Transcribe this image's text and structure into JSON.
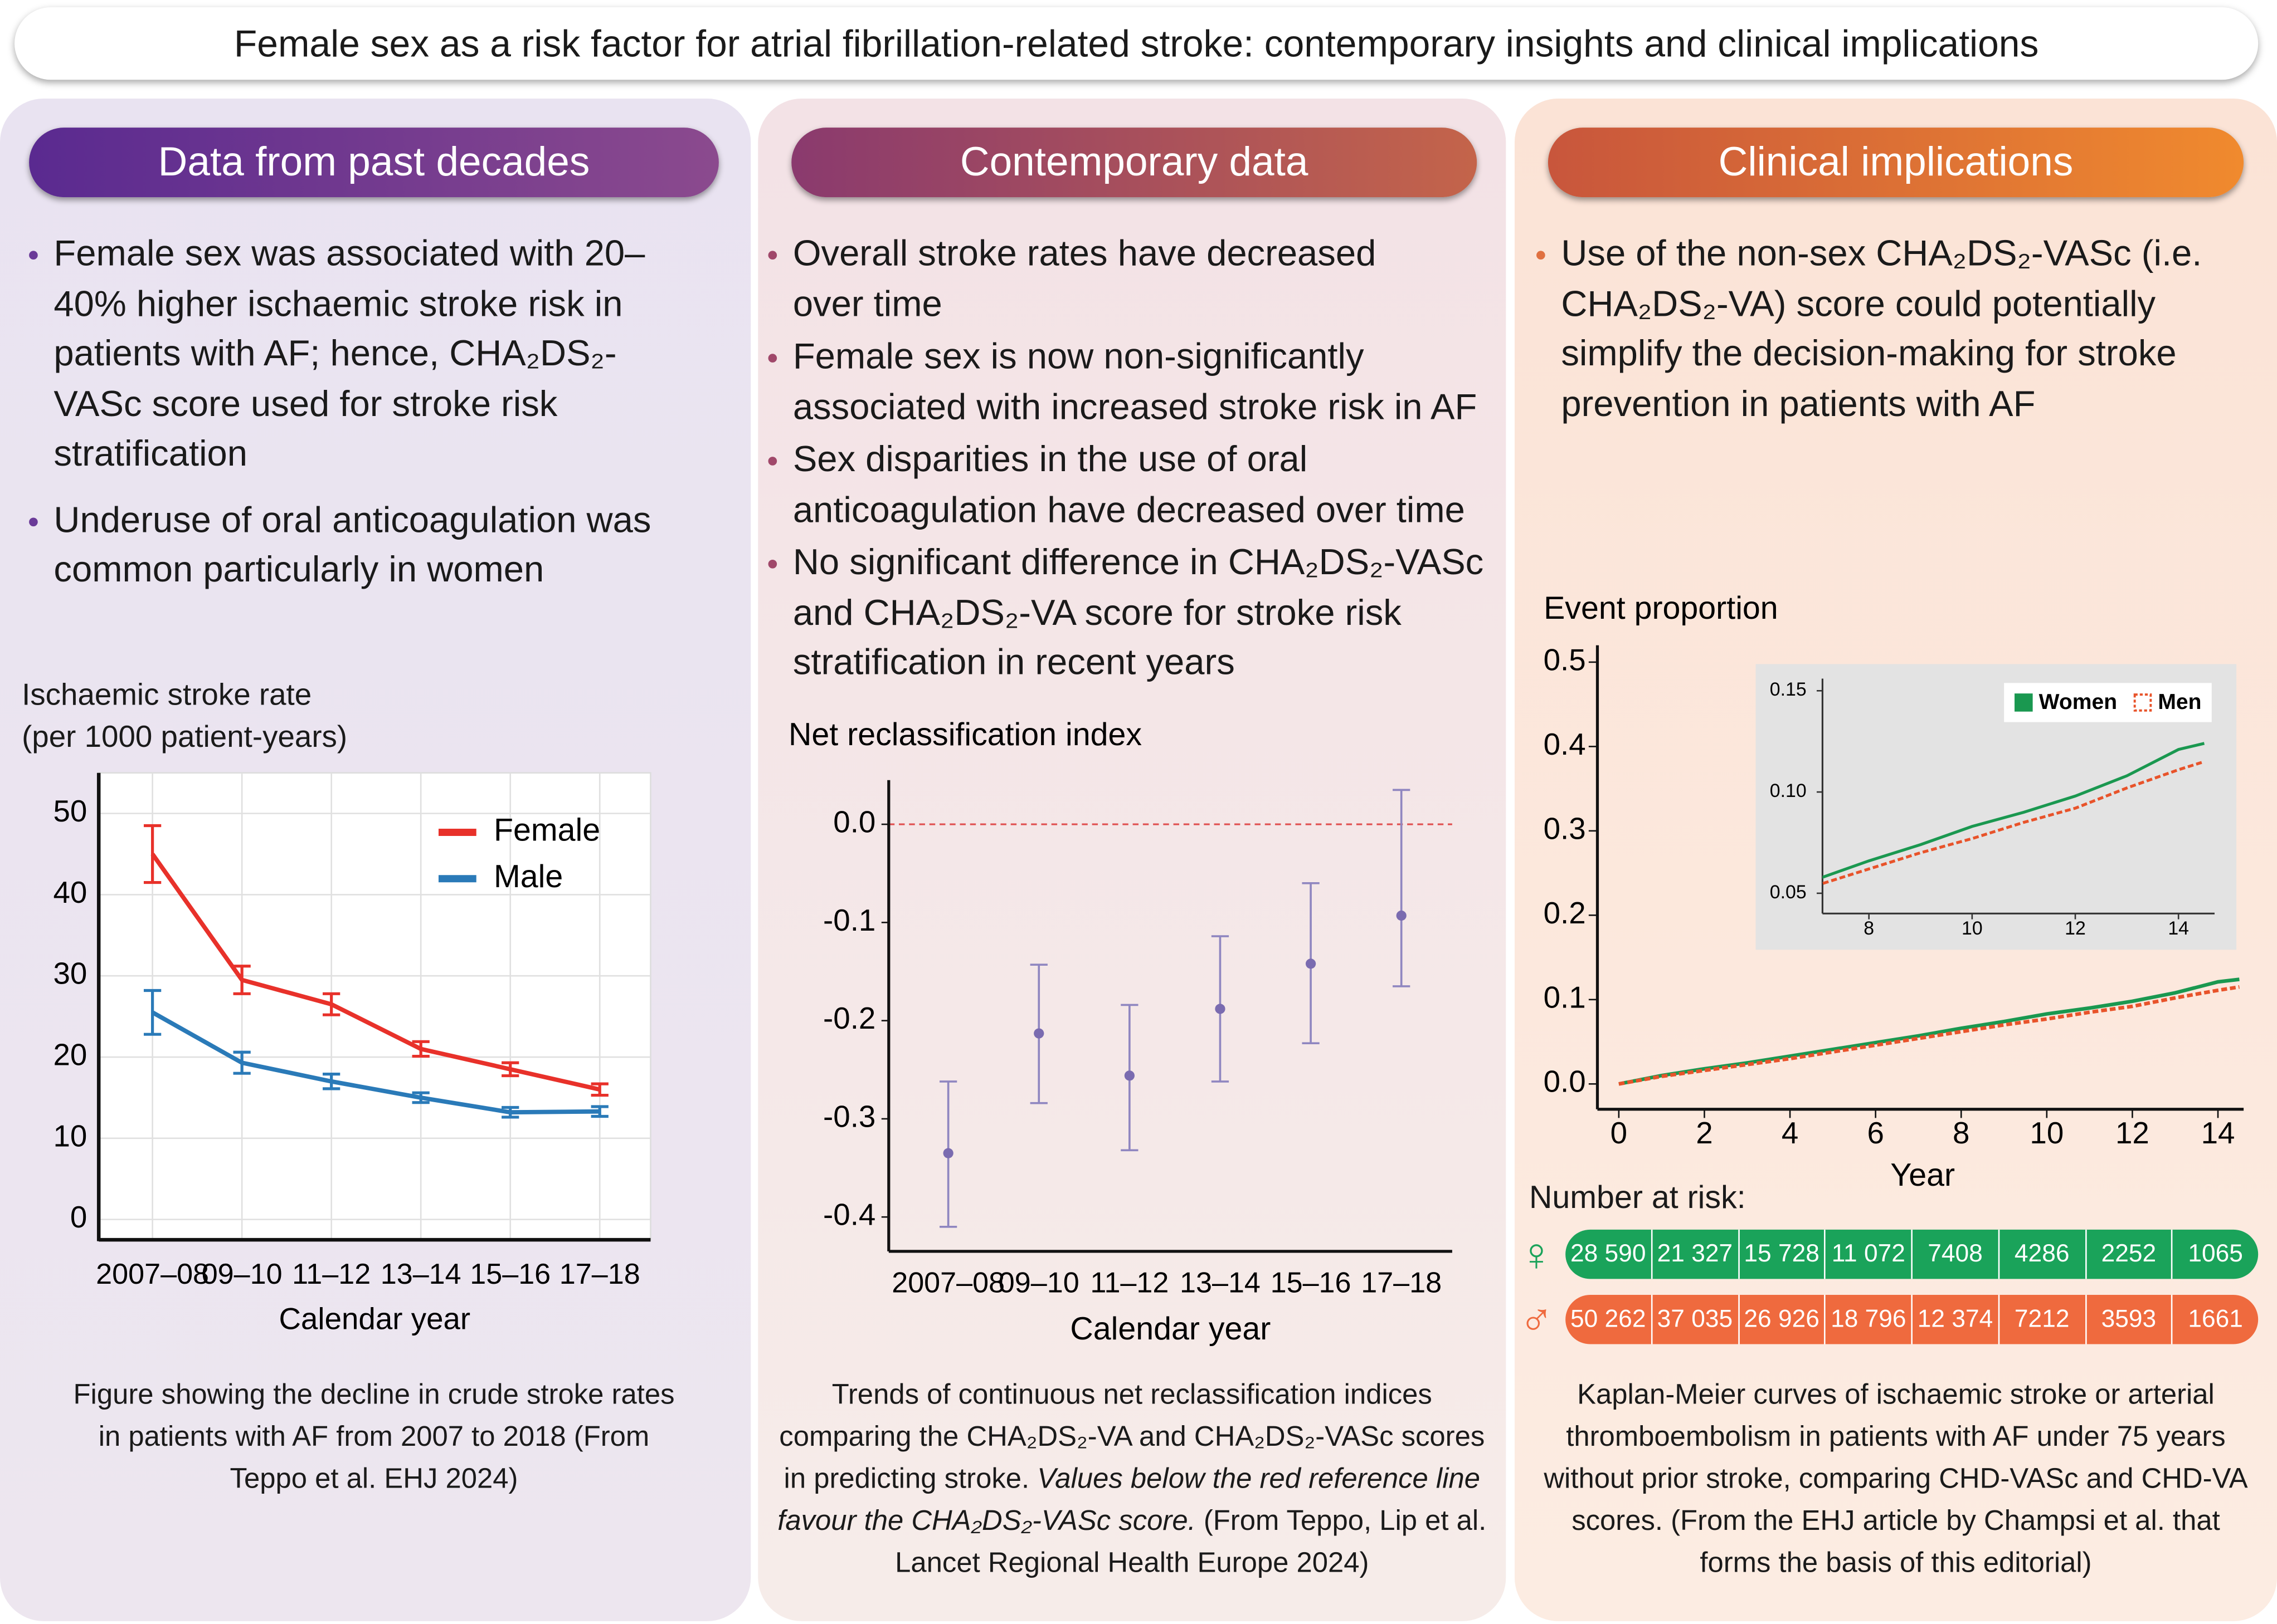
{
  "title": "Female sex as a risk factor for atrial fibrillation-related stroke: contemporary insights and clinical implications",
  "panels": [
    {
      "heading": "Data from past decades",
      "bullets": [
        "Female sex was associated with 20–40% higher ischaemic stroke risk in patients with AF; hence, CHA₂DS₂-VASc score used for stroke risk stratification",
        "Underuse of oral anticoagulation was common particularly in women"
      ],
      "caption": {
        "text": "Figure showing the decline in crude stroke rates in patients with AF from 2007 to 2018 (From Teppo et al. EHJ 2024)"
      }
    },
    {
      "heading": "Contemporary data",
      "bullets": [
        "Overall stroke rates have decreased over time",
        "Female sex is now non-significantly associated with increased stroke risk in AF",
        "Sex disparities in the use of oral anticoagulation have decreased over time",
        "No significant difference in CHA₂DS₂-VASc and CHA₂DS₂-VA score for stroke risk stratification in recent years"
      ],
      "caption": {
        "text": "Trends of continuous net reclassification indices comparing the CHA₂DS₂-VA and CHA₂DS₂-VASc scores in predicting stroke.",
        "italic": "Values below the red reference line favour the CHA₂DS₂-VASc score.",
        "source": "(From Teppo, Lip et al. Lancet Regional Health Europe 2024)"
      }
    },
    {
      "heading": "Clinical implications",
      "bullets": [
        "Use of the non-sex CHA₂DS₂-VASc (i.e. CHA₂DS₂-VA) score could potentially simplify the decision-making for stroke prevention in patients with AF"
      ],
      "caption": {
        "text": "Kaplan-Meier curves of ischaemic stroke or arterial thromboembolism in patients with AF under 75 years without prior stroke, comparing CHD-VASc and CHD-VA scores. (From the EHJ article by Champsi et al. that forms the basis of this editorial)"
      },
      "risk_table": {
        "title": "Number at risk:",
        "rows": [
          {
            "symbol": "♀",
            "values": [
              "28 590",
              "21 327",
              "15 728",
              "11 072",
              "7408",
              "4286",
              "2252",
              "1065"
            ]
          },
          {
            "symbol": "♂",
            "values": [
              "50 262",
              "37 035",
              "26 926",
              "18 796",
              "12 374",
              "7212",
              "3593",
              "1661"
            ]
          }
        ]
      }
    }
  ],
  "chart_data": [
    {
      "type": "line",
      "ylabel": [
        "Ischaemic stroke rate",
        "(per 1000 patient-years)"
      ],
      "xlabel": "Calendar year",
      "categories": [
        "2007–08",
        "09–10",
        "11–12",
        "13–14",
        "15–16",
        "17–18"
      ],
      "series": [
        {
          "name": "Female",
          "color": "#e8312a",
          "values": [
            45,
            29.5,
            26.5,
            21,
            18.5,
            16
          ],
          "errors": [
            3.5,
            1.7,
            1.3,
            0.9,
            0.8,
            0.7
          ]
        },
        {
          "name": "Male",
          "color": "#2a7ab8",
          "values": [
            25.5,
            19.3,
            17,
            15,
            13.2,
            13.3
          ],
          "errors": [
            2.7,
            1.3,
            0.9,
            0.6,
            0.6,
            0.6
          ]
        }
      ],
      "ylim": [
        -2.5,
        55
      ],
      "yticks": [
        0,
        10,
        20,
        30,
        40,
        50
      ],
      "grid": true,
      "legend": "upper right"
    },
    {
      "type": "scatter",
      "title": "Net reclassification index",
      "xlabel": "Calendar year",
      "categories": [
        "2007–08",
        "09–10",
        "11–12",
        "13–14",
        "15–16",
        "17–18"
      ],
      "values": [
        -0.335,
        -0.213,
        -0.256,
        -0.188,
        -0.142,
        -0.093
      ],
      "ci_low": [
        -0.41,
        -0.284,
        -0.332,
        -0.262,
        -0.223,
        -0.165
      ],
      "ci_high": [
        -0.262,
        -0.143,
        -0.184,
        -0.114,
        -0.06,
        0.035
      ],
      "color": "#7a6bb0",
      "reference_line": 0,
      "reference_color": "#e05050",
      "ylim": [
        -0.435,
        0.045
      ],
      "yticks": [
        {
          "value": 0,
          "label": "0.0"
        },
        -0.1,
        -0.2,
        -0.3,
        -0.4
      ]
    },
    {
      "type": "line",
      "title": "Event proportion",
      "xlabel": "Year",
      "x": [
        0,
        1,
        2,
        3,
        4,
        5,
        6,
        7,
        8,
        9,
        10,
        11,
        12,
        13,
        14,
        14.5
      ],
      "series": [
        {
          "name": "Women",
          "color": "#1a9850",
          "values": [
            0,
            0.01,
            0.018,
            0.025,
            0.033,
            0.041,
            0.049,
            0.057,
            0.066,
            0.074,
            0.083,
            0.09,
            0.098,
            0.108,
            0.121,
            0.124
          ]
        },
        {
          "name": "Men",
          "color": "#e8532a",
          "dashed": true,
          "values": [
            0,
            0.009,
            0.016,
            0.023,
            0.03,
            0.038,
            0.046,
            0.054,
            0.062,
            0.07,
            0.077,
            0.085,
            0.092,
            0.102,
            0.111,
            0.115
          ]
        }
      ],
      "xlim": [
        -0.5,
        14.6
      ],
      "xticks": [
        0,
        2,
        4,
        6,
        8,
        10,
        12,
        14
      ],
      "ylim": [
        -0.03,
        0.52
      ],
      "yticks": [
        {
          "value": 0,
          "label": "0.0"
        },
        0.1,
        0.2,
        0.3,
        0.4,
        0.5
      ],
      "inset": {
        "xlim": [
          7.1,
          14.7
        ],
        "xticks": [
          8,
          10,
          12,
          14
        ],
        "ylim": [
          0.04,
          0.156
        ],
        "yticks": [
          {
            "value": 0.05,
            "label": "0.05"
          },
          {
            "value": 0.1,
            "label": "0.10"
          },
          {
            "value": 0.15,
            "label": "0.15"
          }
        ]
      }
    }
  ]
}
